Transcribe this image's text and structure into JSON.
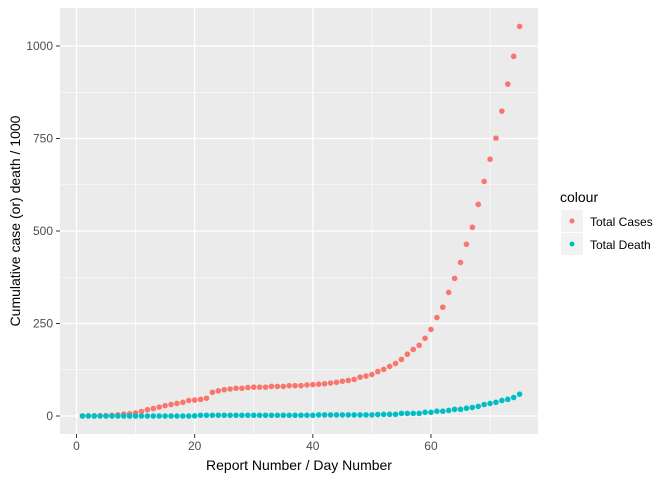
{
  "chart_data": {
    "type": "scatter",
    "title": "",
    "xlabel": "Report Number / Day Number",
    "ylabel": "Cumulative case (or) death / 1000",
    "xlim": [
      -3,
      78
    ],
    "ylim": [
      -50,
      1100
    ],
    "x_ticks": [
      0,
      20,
      40,
      60
    ],
    "y_ticks": [
      0,
      250,
      500,
      750,
      1000
    ],
    "grid": true,
    "legend": {
      "title": "colour",
      "placement": "right"
    },
    "x": [
      1,
      2,
      3,
      4,
      5,
      6,
      7,
      8,
      9,
      10,
      11,
      12,
      13,
      14,
      15,
      16,
      17,
      18,
      19,
      20,
      21,
      22,
      23,
      24,
      25,
      26,
      27,
      28,
      29,
      30,
      31,
      32,
      33,
      34,
      35,
      36,
      37,
      38,
      39,
      40,
      41,
      42,
      43,
      44,
      45,
      46,
      47,
      48,
      49,
      50,
      51,
      52,
      53,
      54,
      55,
      56,
      57,
      58,
      59,
      60,
      61,
      62,
      63,
      64,
      65,
      66,
      67,
      68,
      69,
      70,
      71,
      72,
      73,
      74,
      75
    ],
    "series": [
      {
        "name": "Total Cases",
        "color": "#F8766D",
        "values": [
          0.3,
          0.5,
          0.6,
          0.8,
          1,
          2,
          3,
          5,
          6,
          8,
          12,
          17,
          20,
          24,
          28,
          31,
          34,
          37,
          42,
          43,
          45,
          48,
          64,
          68,
          71,
          73,
          75,
          75,
          77,
          78,
          78,
          78,
          80,
          80,
          80,
          82,
          82,
          82,
          84,
          85,
          86,
          87,
          89,
          91,
          94,
          96,
          99,
          105,
          108,
          112,
          120,
          126,
          134,
          142,
          153,
          167,
          180,
          191,
          210,
          234,
          266,
          294,
          334,
          372,
          415,
          464,
          510,
          572,
          634,
          694,
          751,
          824,
          897,
          972,
          1053
        ]
      },
      {
        "name": "Total Death",
        "color": "#00BFC4",
        "values": [
          0,
          0,
          0,
          0,
          0,
          0,
          0,
          0,
          0,
          0,
          0,
          0,
          0,
          0,
          0,
          0,
          0,
          0,
          0,
          0.5,
          2,
          2,
          2,
          2,
          2,
          2,
          2,
          2,
          2,
          2,
          2,
          2,
          2,
          2,
          2,
          2,
          2,
          2,
          2,
          2,
          3,
          3,
          3,
          3,
          3,
          3,
          3,
          3,
          3,
          3,
          4,
          4.5,
          4.5,
          4.5,
          7,
          7,
          7,
          7,
          10,
          10,
          13,
          13,
          15,
          18,
          18,
          21,
          23,
          26,
          31,
          34,
          37,
          42,
          45,
          50,
          59
        ]
      }
    ]
  }
}
